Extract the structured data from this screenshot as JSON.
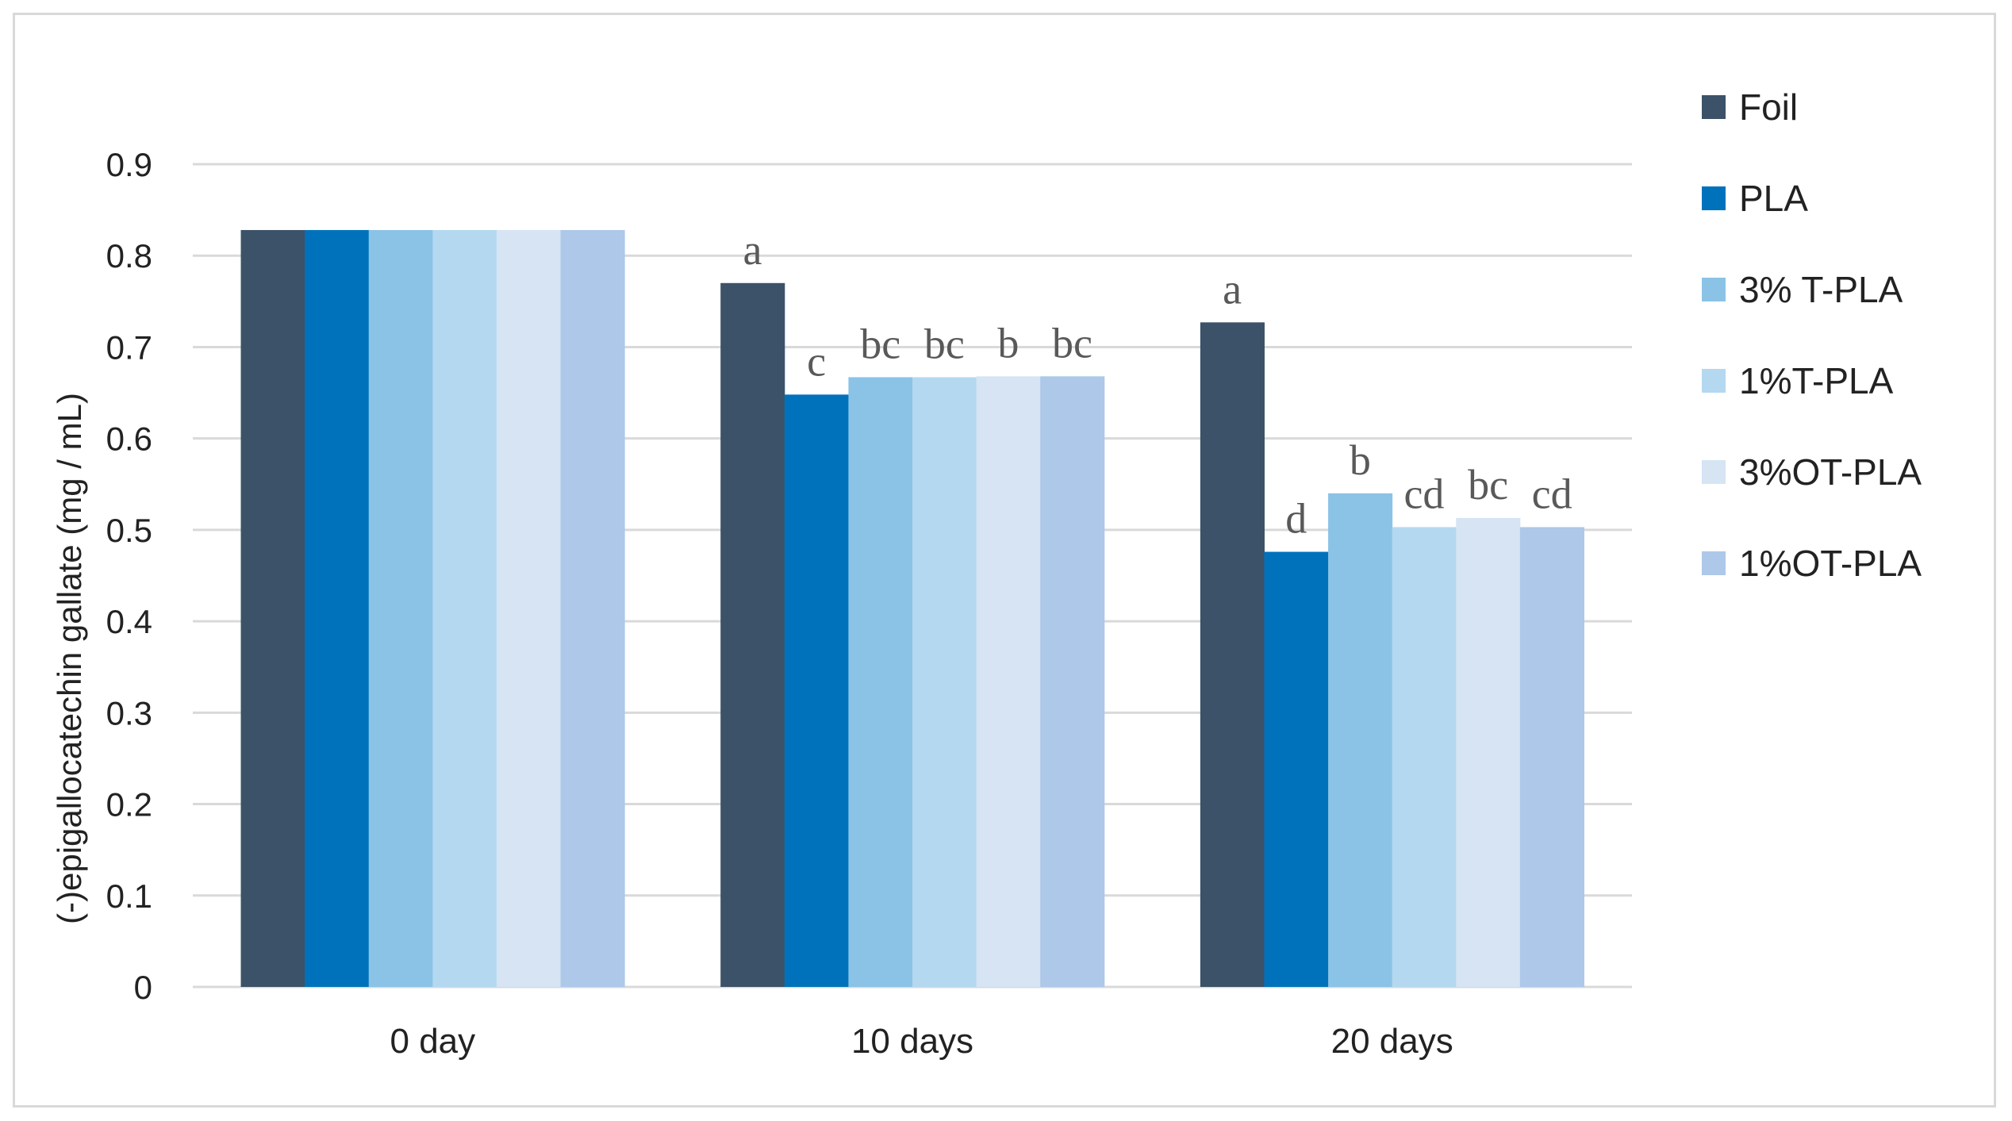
{
  "chart_data": {
    "type": "bar",
    "title": "",
    "xlabel": "",
    "ylabel": "(-)epigallocatechin gallate (mg / mL)",
    "ylim": [
      0,
      0.9
    ],
    "yticks": [
      "0",
      "0.1",
      "0.2",
      "0.3",
      "0.4",
      "0.5",
      "0.6",
      "0.7",
      "0.8",
      "0.9"
    ],
    "grid": true,
    "legend_position": "right",
    "categories": [
      "0 day",
      "10 days",
      "20 days"
    ],
    "series": [
      {
        "name": "Foil",
        "color": "#3b5268",
        "values": [
          0.828,
          0.77,
          0.727
        ],
        "labels": [
          "",
          "a",
          "a"
        ]
      },
      {
        "name": "PLA",
        "color": "#0072bc",
        "values": [
          0.828,
          0.648,
          0.476
        ],
        "labels": [
          "",
          "c",
          "d"
        ]
      },
      {
        "name": "3% T-PLA",
        "color": "#8bc3e6",
        "values": [
          0.828,
          0.667,
          0.54
        ],
        "labels": [
          "",
          "bc",
          "b"
        ]
      },
      {
        "name": "1%T-PLA",
        "color": "#b4d8f0",
        "values": [
          0.828,
          0.667,
          0.503
        ],
        "labels": [
          "",
          "bc",
          "cd"
        ]
      },
      {
        "name": "3%OT-PLA",
        "color": "#d6e4f4",
        "values": [
          0.828,
          0.668,
          0.513
        ],
        "labels": [
          "",
          "b",
          "bc"
        ]
      },
      {
        "name": "1%OT-PLA",
        "color": "#adc8e8",
        "values": [
          0.828,
          0.668,
          0.503
        ],
        "labels": [
          "",
          "bc",
          "cd"
        ]
      }
    ]
  }
}
